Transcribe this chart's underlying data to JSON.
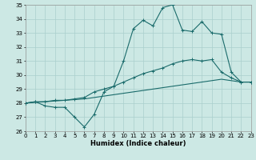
{
  "xlabel": "Humidex (Indice chaleur)",
  "background_color": "#cce8e4",
  "grid_color": "#aacfcc",
  "line_color": "#1a6b6b",
  "xlim": [
    0,
    23
  ],
  "ylim": [
    26,
    35
  ],
  "xticks": [
    0,
    1,
    2,
    3,
    4,
    5,
    6,
    7,
    8,
    9,
    10,
    11,
    12,
    13,
    14,
    15,
    16,
    17,
    18,
    19,
    20,
    21,
    22,
    23
  ],
  "yticks": [
    26,
    27,
    28,
    29,
    30,
    31,
    32,
    33,
    34,
    35
  ],
  "line1_x": [
    0,
    1,
    2,
    3,
    4,
    5,
    6,
    7,
    8,
    9,
    10,
    11,
    12,
    13,
    14,
    15,
    16,
    17,
    18,
    19,
    20,
    21,
    22,
    23
  ],
  "line1_y": [
    28.0,
    28.1,
    27.8,
    27.7,
    27.7,
    27.0,
    26.3,
    27.2,
    28.8,
    29.2,
    31.0,
    33.3,
    33.9,
    33.5,
    34.8,
    35.0,
    33.2,
    33.1,
    33.8,
    33.0,
    32.9,
    30.2,
    29.5,
    29.5
  ],
  "line2_x": [
    0,
    1,
    2,
    3,
    4,
    5,
    6,
    7,
    8,
    9,
    10,
    11,
    12,
    13,
    14,
    15,
    16,
    17,
    18,
    19,
    20,
    21,
    22,
    23
  ],
  "line2_y": [
    28.0,
    28.1,
    28.1,
    28.2,
    28.2,
    28.3,
    28.4,
    28.8,
    29.0,
    29.2,
    29.5,
    29.8,
    30.1,
    30.3,
    30.5,
    30.8,
    31.0,
    31.1,
    31.0,
    31.1,
    30.2,
    29.8,
    29.5,
    29.5
  ],
  "line3_x": [
    0,
    1,
    2,
    3,
    4,
    5,
    6,
    7,
    8,
    9,
    10,
    11,
    12,
    13,
    14,
    15,
    16,
    17,
    18,
    19,
    20,
    21,
    22,
    23
  ],
  "line3_y": [
    28.0,
    28.05,
    28.1,
    28.15,
    28.2,
    28.25,
    28.3,
    28.4,
    28.5,
    28.6,
    28.7,
    28.8,
    28.9,
    29.0,
    29.1,
    29.2,
    29.3,
    29.4,
    29.5,
    29.6,
    29.7,
    29.6,
    29.5,
    29.5
  ]
}
